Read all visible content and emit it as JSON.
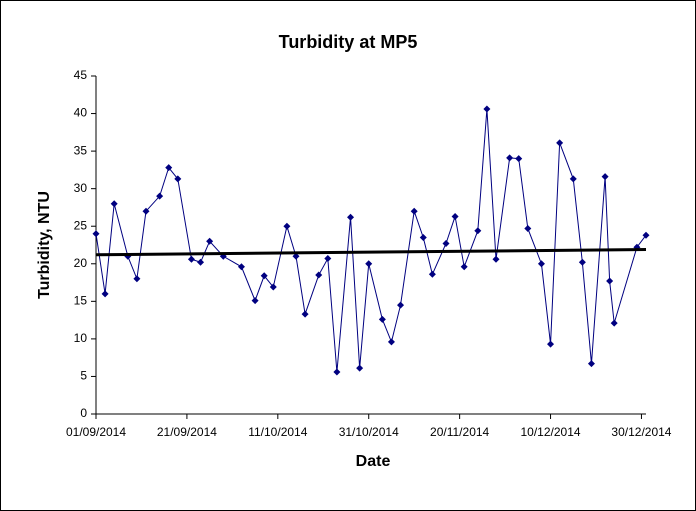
{
  "chart_data": {
    "type": "line",
    "title": "Turbidity at MP5",
    "x_label": "Date",
    "y_label": "Turbidity, NTU",
    "x": [
      "01/09/2014",
      "03/09/2014",
      "05/09/2014",
      "08/09/2014",
      "10/09/2014",
      "12/09/2014",
      "15/09/2014",
      "17/09/2014",
      "19/09/2014",
      "22/09/2014",
      "24/09/2014",
      "26/09/2014",
      "29/09/2014",
      "03/10/2014",
      "06/10/2014",
      "08/10/2014",
      "10/10/2014",
      "13/10/2014",
      "15/10/2014",
      "17/10/2014",
      "20/10/2014",
      "22/10/2014",
      "24/10/2014",
      "27/10/2014",
      "29/10/2014",
      "31/10/2014",
      "03/11/2014",
      "05/11/2014",
      "07/11/2014",
      "10/11/2014",
      "12/11/2014",
      "14/11/2014",
      "17/11/2014",
      "19/11/2014",
      "21/11/2014",
      "24/11/2014",
      "26/11/2014",
      "28/11/2014",
      "01/12/2014",
      "03/12/2014",
      "05/12/2014",
      "08/12/2014",
      "10/12/2014",
      "12/12/2014",
      "15/12/2014",
      "17/12/2014",
      "19/12/2014",
      "22/12/2014",
      "23/12/2014",
      "24/12/2014",
      "29/12/2014",
      "31/12/2014"
    ],
    "series": [
      {
        "color": "#000080",
        "values": [
          24,
          16,
          28,
          21,
          18,
          27,
          29,
          32.8,
          31.3,
          20.6,
          20.2,
          23,
          21,
          19.6,
          15.1,
          18.4,
          16.9,
          25,
          21,
          13.3,
          18.5,
          20.7,
          5.6,
          26.2,
          6.1,
          20,
          12.6,
          9.6,
          14.5,
          27,
          23.5,
          18.6,
          22.7,
          26.3,
          19.6,
          24.4,
          40.6,
          20.6,
          34.1,
          34,
          24.7,
          20,
          9.3,
          36.1,
          31.3,
          20.2,
          6.7,
          31.6,
          17.7,
          12.1,
          22.2,
          23.8
        ]
      }
    ],
    "trendline": {
      "color": "#000000",
      "values": [
        21.2,
        21.9
      ]
    },
    "xlim": [
      "01/09/2014",
      "31/12/2014"
    ],
    "xticks": [
      "01/09/2014",
      "21/09/2014",
      "11/10/2014",
      "31/10/2014",
      "20/11/2014",
      "10/12/2014",
      "30/12/2014"
    ],
    "ylim": [
      0,
      45
    ],
    "yticks": [
      0,
      5,
      10,
      15,
      20,
      25,
      30,
      35,
      40,
      45
    ],
    "grid": false
  }
}
